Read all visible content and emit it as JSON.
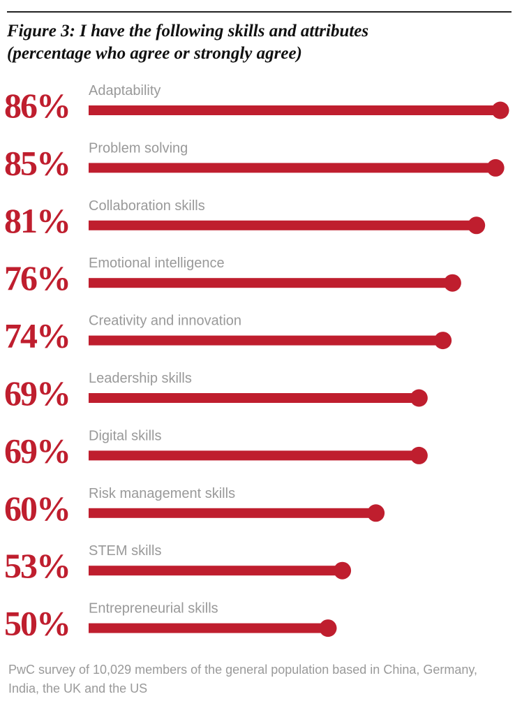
{
  "chart_data": {
    "type": "lollipop",
    "title": "Figure 3: I have the following skills and attributes",
    "subtitle": "(percentage who agree or strongly agree)",
    "categories": [
      "Adaptability",
      "Problem solving",
      "Collaboration skills",
      "Emotional intelligence",
      "Creativity and innovation",
      "Leadership skills",
      "Digital skills",
      "Risk management skills",
      "STEM skills",
      "Entrepreneurial skills"
    ],
    "values": [
      86,
      85,
      81,
      76,
      74,
      69,
      69,
      60,
      53,
      50
    ],
    "value_labels": [
      "86%",
      "85%",
      "81%",
      "76%",
      "74%",
      "69%",
      "69%",
      "60%",
      "53%",
      "50%"
    ],
    "color": "#bf1e2e",
    "note": "PwC survey of 10,029 members of the general population based in China, Germany, India, the UK and the US"
  }
}
